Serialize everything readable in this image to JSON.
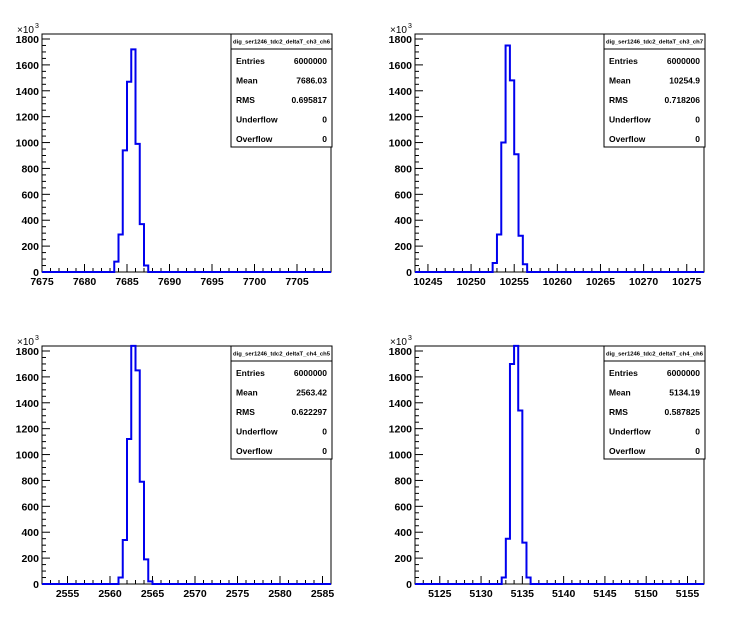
{
  "chart_data": [
    {
      "type": "histogram",
      "title": "dig_ser1246_tdc2_deltaT_ch3_ch6",
      "xlim": [
        7675,
        7709
      ],
      "ylim": [
        0,
        1800
      ],
      "y_multiplier": "×10",
      "y_multiplier_exp": "3",
      "xticks": [
        7675,
        7680,
        7685,
        7690,
        7695,
        7700,
        7705
      ],
      "yticks": [
        0,
        200,
        400,
        600,
        800,
        1000,
        1200,
        1400,
        1600,
        1800
      ],
      "bin_width": 0.5,
      "bins": [
        {
          "x": 7683.5,
          "y": 80
        },
        {
          "x": 7684.0,
          "y": 290
        },
        {
          "x": 7684.5,
          "y": 940
        },
        {
          "x": 7685.0,
          "y": 1470
        },
        {
          "x": 7685.5,
          "y": 1720
        },
        {
          "x": 7686.0,
          "y": 990
        },
        {
          "x": 7686.5,
          "y": 370
        },
        {
          "x": 7687.0,
          "y": 50
        }
      ],
      "stats": {
        "title": "dig_ser1246_tdc2_deltaT_ch3_ch6",
        "rows": [
          {
            "label": "Entries",
            "value": "6000000"
          },
          {
            "label": "Mean",
            "value": "7686.03"
          },
          {
            "label": "RMS",
            "value": "0.695817"
          },
          {
            "label": "Underflow",
            "value": "0"
          },
          {
            "label": "Overflow",
            "value": "0"
          }
        ]
      }
    },
    {
      "type": "histogram",
      "title": "dig_ser1246_tdc2_deltaT_ch3_ch7",
      "xlim": [
        10243.5,
        10277
      ],
      "ylim": [
        0,
        1800
      ],
      "y_multiplier": "×10",
      "y_multiplier_exp": "3",
      "xticks": [
        10245,
        10250,
        10255,
        10260,
        10265,
        10270,
        10275
      ],
      "yticks": [
        0,
        200,
        400,
        600,
        800,
        1000,
        1200,
        1400,
        1600,
        1800
      ],
      "bin_width": 0.5,
      "bins": [
        {
          "x": 10252.5,
          "y": 70
        },
        {
          "x": 10253.0,
          "y": 290
        },
        {
          "x": 10253.5,
          "y": 1000
        },
        {
          "x": 10254.0,
          "y": 1750
        },
        {
          "x": 10254.5,
          "y": 1480
        },
        {
          "x": 10255.0,
          "y": 910
        },
        {
          "x": 10255.5,
          "y": 280
        },
        {
          "x": 10256.0,
          "y": 60
        }
      ],
      "stats": {
        "title": "dig_ser1246_tdc2_deltaT_ch3_ch7",
        "rows": [
          {
            "label": "Entries",
            "value": "6000000"
          },
          {
            "label": "Mean",
            "value": "10254.9"
          },
          {
            "label": "RMS",
            "value": "0.718206"
          },
          {
            "label": "Underflow",
            "value": "0"
          },
          {
            "label": "Overflow",
            "value": "0"
          }
        ]
      }
    },
    {
      "type": "histogram",
      "title": "dig_ser1246_tdc2_deltaT_ch4_ch5",
      "xlim": [
        2552,
        2586
      ],
      "ylim": [
        0,
        1800
      ],
      "y_multiplier": "×10",
      "y_multiplier_exp": "3",
      "xticks": [
        2555,
        2560,
        2565,
        2570,
        2575,
        2580,
        2585
      ],
      "yticks": [
        0,
        200,
        400,
        600,
        800,
        1000,
        1200,
        1400,
        1600,
        1800
      ],
      "bin_width": 0.5,
      "bins": [
        {
          "x": 2561.0,
          "y": 50
        },
        {
          "x": 2561.5,
          "y": 340
        },
        {
          "x": 2562.0,
          "y": 1120
        },
        {
          "x": 2562.5,
          "y": 1840
        },
        {
          "x": 2563.0,
          "y": 1650
        },
        {
          "x": 2563.5,
          "y": 790
        },
        {
          "x": 2564.0,
          "y": 190
        },
        {
          "x": 2564.5,
          "y": 20
        }
      ],
      "stats": {
        "title": "dig_ser1246_tdc2_deltaT_ch4_ch5",
        "rows": [
          {
            "label": "Entries",
            "value": "6000000"
          },
          {
            "label": "Mean",
            "value": "2563.42"
          },
          {
            "label": "RMS",
            "value": "0.622297"
          },
          {
            "label": "Underflow",
            "value": "0"
          },
          {
            "label": "Overflow",
            "value": "0"
          }
        ]
      }
    },
    {
      "type": "histogram",
      "title": "dig_ser1246_tdc2_deltaT_ch4_ch6",
      "xlim": [
        5122,
        5157
      ],
      "ylim": [
        0,
        1800
      ],
      "y_multiplier": "×10",
      "y_multiplier_exp": "3",
      "xticks": [
        5125,
        5130,
        5135,
        5140,
        5145,
        5150,
        5155
      ],
      "yticks": [
        0,
        200,
        400,
        600,
        800,
        1000,
        1200,
        1400,
        1600,
        1800
      ],
      "bin_width": 0.5,
      "bins": [
        {
          "x": 5132.5,
          "y": 50
        },
        {
          "x": 5133.0,
          "y": 350
        },
        {
          "x": 5133.5,
          "y": 1700
        },
        {
          "x": 5134.0,
          "y": 1840
        },
        {
          "x": 5134.5,
          "y": 1340
        },
        {
          "x": 5135.0,
          "y": 320
        },
        {
          "x": 5135.5,
          "y": 50
        }
      ],
      "stats": {
        "title": "dig_ser1246_tdc2_deltaT_ch4_ch6",
        "rows": [
          {
            "label": "Entries",
            "value": "6000000"
          },
          {
            "label": "Mean",
            "value": "5134.19"
          },
          {
            "label": "RMS",
            "value": "0.587825"
          },
          {
            "label": "Underflow",
            "value": "0"
          },
          {
            "label": "Overflow",
            "value": "0"
          }
        ]
      }
    }
  ]
}
